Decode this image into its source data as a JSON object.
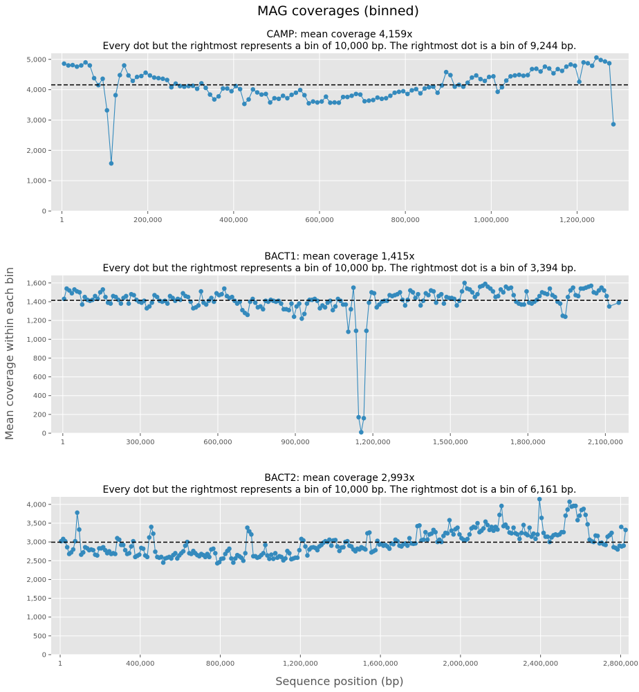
{
  "figure": {
    "suptitle": "MAG coverages (binned)",
    "xlabel": "Sequence position (bp)",
    "ylabel": "Mean coverage within each bin"
  },
  "colors": {
    "series": "#348abd",
    "mean_line": "#000000",
    "axes_bg": "#e5e5e5",
    "grid": "#ffffff"
  },
  "chart_data": [
    {
      "type": "line",
      "title": "CAMP: mean coverage 4,159x",
      "subtitle": "Every dot but the rightmost represents a bin of 10,000 bp. The rightmost dot is a bin of 9,244 bp.",
      "mean": 4159,
      "xlim": [
        -25000,
        1320000
      ],
      "ylim": [
        0,
        5200
      ],
      "xticks": [
        1,
        200000,
        400000,
        600000,
        800000,
        1000000,
        1200000
      ],
      "xtick_labels": [
        "1",
        "200,000",
        "400,000",
        "600,000",
        "800,000",
        "1,000,000",
        "1,200,000"
      ],
      "yticks": [
        0,
        1000,
        2000,
        3000,
        4000,
        5000
      ],
      "ytick_labels": [
        "0",
        "1,000",
        "2,000",
        "3,000",
        "4,000",
        "5,000"
      ],
      "x_start": 5000,
      "x_step": 10000,
      "last_x": 1284622,
      "values": [
        4860,
        4800,
        4810,
        4760,
        4800,
        4900,
        4800,
        4380,
        4150,
        4360,
        3320,
        1570,
        3820,
        4480,
        4800,
        4470,
        4290,
        4420,
        4450,
        4560,
        4470,
        4400,
        4380,
        4360,
        4320,
        4080,
        4200,
        4120,
        4100,
        4120,
        4130,
        4030,
        4210,
        4060,
        3840,
        3680,
        3780,
        4040,
        4040,
        3950,
        4120,
        4020,
        3530,
        3680,
        4010,
        3910,
        3840,
        3860,
        3580,
        3720,
        3700,
        3800,
        3720,
        3830,
        3900,
        3990,
        3820,
        3550,
        3610,
        3580,
        3610,
        3770,
        3570,
        3580,
        3570,
        3760,
        3760,
        3800,
        3860,
        3840,
        3620,
        3640,
        3660,
        3740,
        3700,
        3720,
        3800,
        3900,
        3930,
        3950,
        3860,
        3980,
        4020,
        3880,
        4040,
        4080,
        4100,
        3900,
        4140,
        4580,
        4480,
        4100,
        4160,
        4100,
        4230,
        4400,
        4470,
        4350,
        4290,
        4420,
        4440,
        3930,
        4080,
        4300,
        4440,
        4470,
        4490,
        4460,
        4480,
        4680,
        4690,
        4600,
        4760,
        4700,
        4540,
        4680,
        4620,
        4760,
        4830,
        4790,
        4260,
        4900,
        4870,
        4790,
        5060,
        4980,
        4930,
        4870,
        2860
      ]
    },
    {
      "type": "line",
      "title": "BACT1: mean coverage 1,415x",
      "subtitle": "Every dot but the rightmost represents a bin of 10,000 bp. The rightmost dot is a bin of 3,394 bp.",
      "mean": 1415,
      "xlim": [
        -45000,
        2190000
      ],
      "ylim": [
        0,
        1680
      ],
      "xticks": [
        1,
        300000,
        600000,
        900000,
        1200000,
        1500000,
        1800000,
        2100000
      ],
      "xtick_labels": [
        "1",
        "300,000",
        "600,000",
        "900,000",
        "1,200,000",
        "1,500,000",
        "1,800,000",
        "2,100,000"
      ],
      "yticks": [
        0,
        200,
        400,
        600,
        800,
        1000,
        1200,
        1400,
        1600
      ],
      "ytick_labels": [
        "0",
        "200",
        "400",
        "600",
        "800",
        "1,000",
        "1,200",
        "1,400",
        "1,600"
      ],
      "x_start": 5000,
      "x_step": 10000,
      "last_x": 2151697,
      "values": [
        1430,
        1540,
        1520,
        1490,
        1530,
        1510,
        1500,
        1370,
        1450,
        1420,
        1410,
        1420,
        1460,
        1430,
        1500,
        1530,
        1450,
        1390,
        1380,
        1460,
        1450,
        1420,
        1380,
        1440,
        1460,
        1380,
        1480,
        1470,
        1420,
        1400,
        1390,
        1410,
        1330,
        1350,
        1390,
        1470,
        1450,
        1410,
        1400,
        1410,
        1380,
        1460,
        1440,
        1410,
        1430,
        1420,
        1490,
        1460,
        1450,
        1400,
        1330,
        1340,
        1360,
        1510,
        1390,
        1370,
        1410,
        1440,
        1400,
        1490,
        1470,
        1480,
        1540,
        1460,
        1440,
        1450,
        1410,
        1380,
        1400,
        1310,
        1280,
        1260,
        1400,
        1430,
        1390,
        1340,
        1350,
        1320,
        1410,
        1400,
        1420,
        1410,
        1400,
        1410,
        1380,
        1320,
        1320,
        1310,
        1380,
        1240,
        1350,
        1380,
        1220,
        1270,
        1380,
        1420,
        1420,
        1430,
        1410,
        1330,
        1360,
        1340,
        1390,
        1410,
        1310,
        1350,
        1430,
        1410,
        1370,
        1370,
        1080,
        1320,
        1550,
        1090,
        170,
        10,
        160,
        1090,
        1390,
        1500,
        1490,
        1340,
        1370,
        1400,
        1410,
        1410,
        1470,
        1460,
        1470,
        1480,
        1500,
        1420,
        1360,
        1420,
        1520,
        1500,
        1440,
        1480,
        1360,
        1410,
        1490,
        1470,
        1520,
        1510,
        1390,
        1460,
        1480,
        1380,
        1450,
        1440,
        1440,
        1430,
        1360,
        1410,
        1510,
        1600,
        1540,
        1530,
        1500,
        1450,
        1480,
        1560,
        1570,
        1590,
        1560,
        1540,
        1510,
        1450,
        1460,
        1530,
        1500,
        1560,
        1540,
        1550,
        1470,
        1400,
        1380,
        1370,
        1370,
        1510,
        1390,
        1380,
        1400,
        1420,
        1460,
        1500,
        1490,
        1480,
        1540,
        1470,
        1450,
        1400,
        1380,
        1250,
        1240,
        1450,
        1520,
        1550,
        1470,
        1460,
        1540,
        1540,
        1550,
        1560,
        1570,
        1500,
        1490,
        1520,
        1550,
        1520,
        1460,
        1350,
        1390
      ]
    },
    {
      "type": "line",
      "title": "BACT2: mean coverage 2,993x",
      "subtitle": "Every dot but the rightmost represents a bin of 10,000 bp. The rightmost dot is a bin of 6,161 bp.",
      "mean": 2993,
      "xlim": [
        -45000,
        2840000
      ],
      "ylim": [
        0,
        4200
      ],
      "xticks": [
        1,
        400000,
        800000,
        1200000,
        1600000,
        2000000,
        2400000,
        2800000
      ],
      "xtick_labels": [
        "1",
        "400,000",
        "800,000",
        "1,200,000",
        "1,600,000",
        "2,000,000",
        "2,400,000",
        "2,800,000"
      ],
      "yticks": [
        0,
        500,
        1000,
        1500,
        2000,
        2500,
        3000,
        3500,
        4000
      ],
      "ytick_labels": [
        "0",
        "500",
        "1,000",
        "1,500",
        "2,000",
        "2,500",
        "3,000",
        "3,500",
        "4,000"
      ],
      "x_start": 5000,
      "x_step": 10000,
      "last_x": 2803081,
      "values": [
        3020,
        3080,
        3020,
        2860,
        2680,
        2720,
        2800,
        3020,
        3780,
        3330,
        2660,
        2720,
        2860,
        2830,
        2780,
        2800,
        2780,
        2660,
        2640,
        2830,
        2830,
        2860,
        2780,
        2700,
        2750,
        2680,
        2700,
        2680,
        3100,
        3060,
        2920,
        2920,
        2780,
        2680,
        2700,
        2880,
        3020,
        2600,
        2630,
        2660,
        2840,
        2820,
        2640,
        2600,
        3120,
        3400,
        3220,
        2740,
        2600,
        2580,
        2600,
        2450,
        2560,
        2580,
        2600,
        2560,
        2650,
        2700,
        2560,
        2640,
        2700,
        2750,
        2900,
        3000,
        2700,
        2680,
        2760,
        2700,
        2650,
        2620,
        2680,
        2650,
        2600,
        2680,
        2600,
        2800,
        2820,
        2700,
        2430,
        2460,
        2550,
        2560,
        2680,
        2760,
        2820,
        2560,
        2450,
        2560,
        2650,
        2620,
        2580,
        2500,
        2700,
        3380,
        3280,
        3200,
        2620,
        2620,
        2580,
        2600,
        2650,
        2700,
        2920,
        2640,
        2550,
        2660,
        2550,
        2700,
        2580,
        2620,
        2600,
        2510,
        2560,
        2760,
        2700,
        2540,
        2560,
        2580,
        2580,
        2780,
        3080,
        3040,
        2880,
        2640,
        2800,
        2850,
        2860,
        2840,
        2780,
        2880,
        2920,
        2980,
        3020,
        3000,
        3060,
        2900,
        3040,
        3050,
        2880,
        2760,
        2850,
        2860,
        3000,
        3020,
        2900,
        2880,
        2800,
        2750,
        2820,
        2800,
        2860,
        2830,
        2800,
        3230,
        3250,
        2720,
        2750,
        2780,
        3030,
        2930,
        2950,
        2900,
        2920,
        2880,
        2820,
        2960,
        2940,
        3060,
        3020,
        2900,
        2880,
        2940,
        2960,
        2900,
        3100,
        2960,
        2950,
        2960,
        3420,
        3440,
        3040,
        3060,
        3260,
        3060,
        3200,
        3220,
        3320,
        3260,
        3000,
        3060,
        3000,
        3160,
        3240,
        3230,
        3580,
        3300,
        3200,
        3340,
        3380,
        3200,
        3100,
        3060,
        3040,
        3080,
        3200,
        3360,
        3400,
        3380,
        3500,
        3260,
        3300,
        3360,
        3540,
        3450,
        3320,
        3400,
        3300,
        3400,
        3330,
        3720,
        3960,
        3420,
        3460,
        3380,
        3250,
        3230,
        3380,
        3230,
        3200,
        3080,
        3240,
        3450,
        3220,
        3180,
        3380,
        3140,
        3220,
        3080,
        3200,
        4140,
        3640,
        3240,
        3140,
        3140,
        3000,
        3120,
        3180,
        3200,
        3180,
        3200,
        3260,
        3260,
        3700,
        3860,
        4070,
        3940,
        3960,
        3960,
        3580,
        3700,
        3850,
        3880,
        3720,
        3470,
        3060,
        3020,
        3000,
        3170,
        3160,
        2960,
        2980,
        2940,
        2920,
        3140,
        3180,
        3240,
        2860,
        2840,
        2800,
        2900,
        2880,
        2900,
        3320,
        3400
      ]
    }
  ]
}
